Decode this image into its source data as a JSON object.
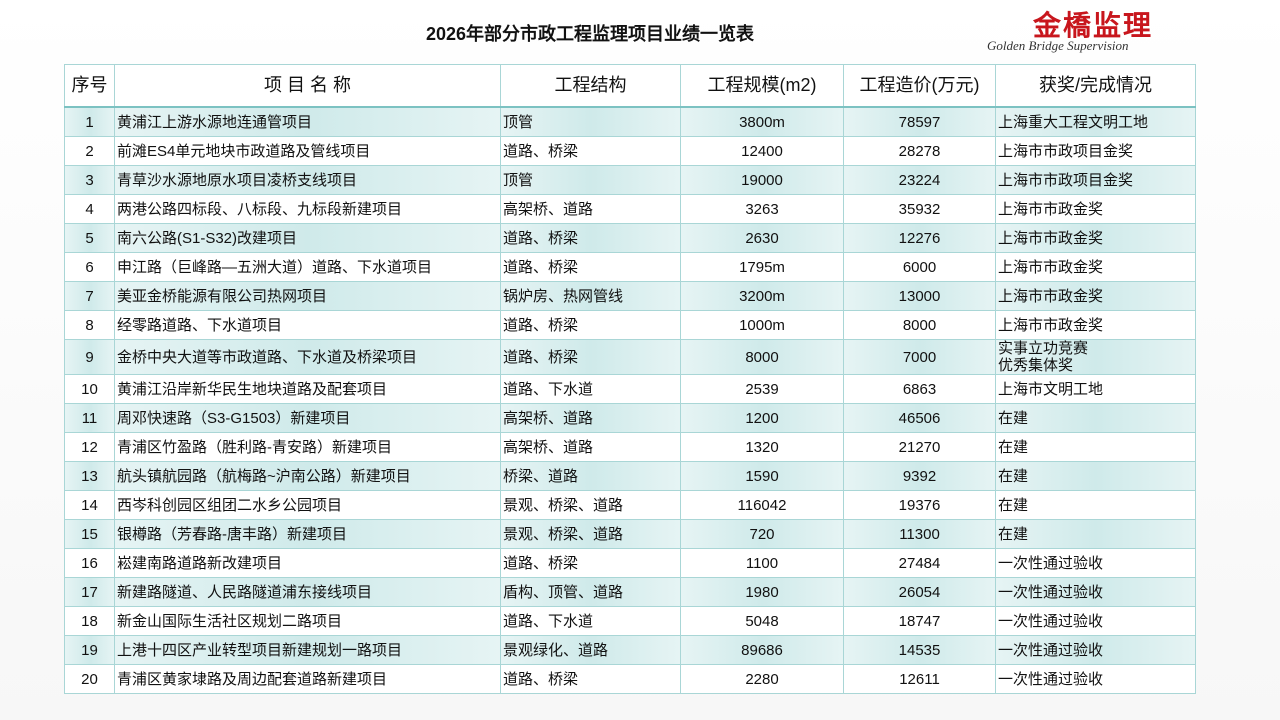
{
  "header": {
    "title": "2026年部分市政工程监理项目业绩一览表",
    "logo_cn": "金橋监理",
    "logo_en": "Golden Bridge Supervision"
  },
  "table": {
    "columns": [
      "序号",
      "项 目 名 称",
      "工程结构",
      "工程规模(m2)",
      "工程造价(万元)",
      "获奖/完成情况"
    ],
    "rows": [
      [
        1,
        "黄浦江上游水源地连通管项目",
        "顶管",
        "3800m",
        78597,
        "上海重大工程文明工地"
      ],
      [
        2,
        "前滩ES4单元地块市政道路及管线项目",
        "道路、桥梁",
        12400,
        28278,
        "上海市市政项目金奖"
      ],
      [
        3,
        "青草沙水源地原水项目凌桥支线项目",
        "顶管",
        19000,
        23224,
        "上海市市政项目金奖"
      ],
      [
        4,
        "两港公路四标段、八标段、九标段新建项目",
        "高架桥、道路",
        3263,
        35932,
        "上海市市政金奖"
      ],
      [
        5,
        "南六公路(S1-S32)改建项目",
        "道路、桥梁",
        2630,
        12276,
        "上海市市政金奖"
      ],
      [
        6,
        "申江路（巨峰路—五洲大道）道路、下水道项目",
        "道路、桥梁",
        "1795m",
        6000,
        "上海市市政金奖"
      ],
      [
        7,
        "美亚金桥能源有限公司热网项目",
        "锅炉房、热网管线",
        "3200m",
        13000,
        "上海市市政金奖"
      ],
      [
        8,
        "经零路道路、下水道项目",
        "道路、桥梁",
        "1000m",
        8000,
        "上海市市政金奖"
      ],
      [
        9,
        "金桥中央大道等市政道路、下水道及桥梁项目",
        "道路、桥梁",
        8000,
        7000,
        "实事立功竞赛\n优秀集体奖"
      ],
      [
        10,
        "黄浦江沿岸新华民生地块道路及配套项目",
        "道路、下水道",
        2539,
        6863,
        "上海市文明工地"
      ],
      [
        11,
        "周邓快速路（S3-G1503）新建项目",
        "高架桥、道路",
        1200,
        46506,
        "在建"
      ],
      [
        12,
        "青浦区竹盈路（胜利路-青安路）新建项目",
        "高架桥、道路",
        1320,
        21270,
        "在建"
      ],
      [
        13,
        "航头镇航园路（航梅路~沪南公路）新建项目",
        "桥梁、道路",
        1590,
        9392,
        "在建"
      ],
      [
        14,
        "西岑科创园区组团二水乡公园项目",
        "景观、桥梁、道路",
        116042,
        19376,
        "在建"
      ],
      [
        15,
        "银樽路（芳春路-唐丰路）新建项目",
        "景观、桥梁、道路",
        720,
        11300,
        "在建"
      ],
      [
        16,
        "崧建南路道路新改建项目",
        "道路、桥梁",
        1100,
        27484,
        "一次性通过验收"
      ],
      [
        17,
        "新建路隧道、人民路隧道浦东接线项目",
        "盾构、顶管、道路",
        1980,
        26054,
        "一次性通过验收"
      ],
      [
        18,
        "新金山国际生活社区规划二路项目",
        "道路、下水道",
        5048,
        18747,
        "一次性通过验收"
      ],
      [
        19,
        "上港十四区产业转型项目新建规划一路项目",
        "景观绿化、道路",
        89686,
        14535,
        "一次性通过验收"
      ],
      [
        20,
        "青浦区黄家埭路及周边配套道路新建项目",
        "道路、桥梁",
        2280,
        12611,
        "一次性通过验收"
      ]
    ]
  }
}
